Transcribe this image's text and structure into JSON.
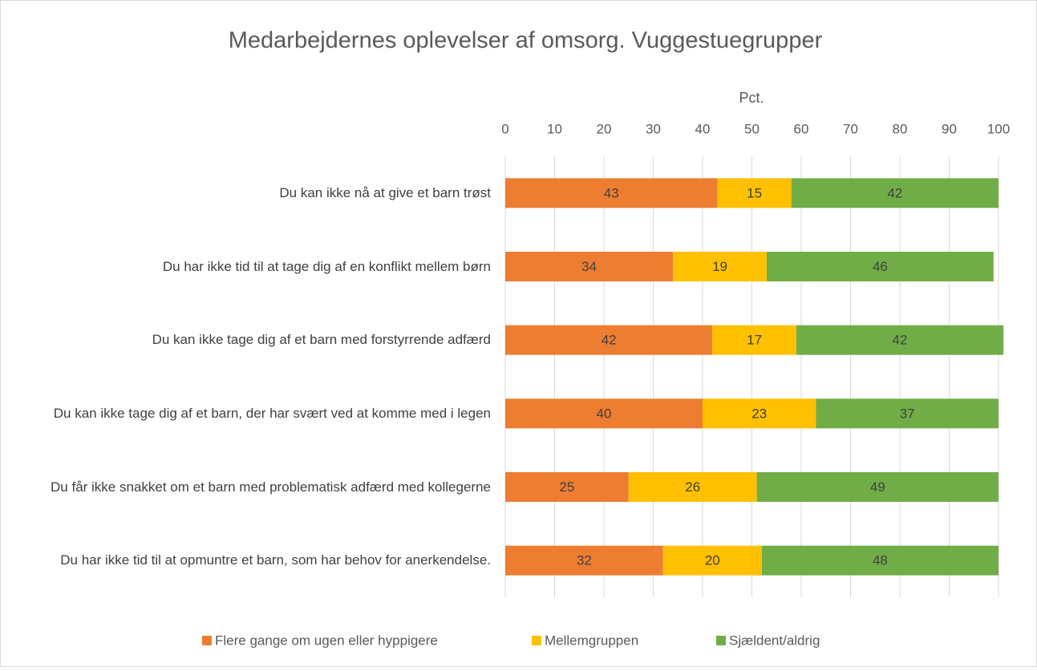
{
  "chart_data": {
    "type": "stacked_bar_horizontal",
    "title": "Medarbejdernes oplevelser af omsorg. Vuggestuegrupper",
    "x_label": "Pct.",
    "categories": [
      "Du kan ikke nå at give et barn trøst",
      "Du har ikke tid til at tage dig af en konflikt mellem børn",
      "Du kan ikke tage dig af et barn med forstyrrende adfærd",
      "Du kan ikke tage dig af et barn, der har svært ved at komme med i legen",
      "Du får ikke snakket om et barn med problematisk adfærd med kollegerne",
      "Du har ikke tid til at opmuntre et barn, som har behov for anerkendelse."
    ],
    "series": [
      {
        "name": "Flere gange om ugen eller hyppigere",
        "color": "#ed7d31",
        "values": [
          43,
          34,
          42,
          40,
          25,
          32
        ]
      },
      {
        "name": "Mellemgruppen",
        "color": "#ffc000",
        "values": [
          15,
          19,
          17,
          23,
          26,
          20
        ]
      },
      {
        "name": "Sjældent/aldrig",
        "color": "#70ad47",
        "values": [
          42,
          46,
          42,
          37,
          49,
          48
        ]
      }
    ],
    "xlim": [
      0,
      100
    ],
    "xticks": [
      0,
      10,
      20,
      30,
      40,
      50,
      60,
      70,
      80,
      90,
      100
    ],
    "grid": true,
    "legend": "bottom"
  }
}
